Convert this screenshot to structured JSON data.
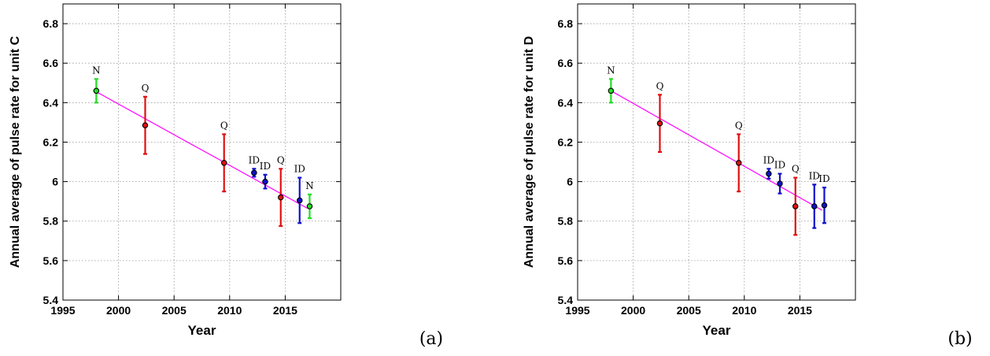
{
  "chart_data": [
    {
      "type": "scatter",
      "panel_tag": "(a)",
      "xlabel": "Year",
      "ylabel": "Annual average of pulse rate for unit C",
      "xlim": [
        1995,
        2020
      ],
      "ylim": [
        5.4,
        6.9
      ],
      "x_ticks": [
        1995,
        2000,
        2005,
        2010,
        2015
      ],
      "y_ticks": [
        5.4,
        5.6,
        5.8,
        6.0,
        6.2,
        6.4,
        6.6,
        6.8
      ],
      "y_tick_labels": [
        "5.4",
        "5.6",
        "5.8",
        "6",
        "6.2",
        "6.4",
        "6.6",
        "6.8"
      ],
      "grid": true,
      "fit_line": {
        "x": [
          1998.0,
          2017.0
        ],
        "y": [
          6.455,
          5.865
        ],
        "color": "#ff00ff"
      },
      "points": [
        {
          "x": 1998.0,
          "y": 6.46,
          "yerr": 0.06,
          "label": "N",
          "color": "#22dd22"
        },
        {
          "x": 2002.4,
          "y": 6.285,
          "yerr": 0.145,
          "label": "Q",
          "color": "#e01010"
        },
        {
          "x": 2009.5,
          "y": 6.095,
          "yerr": 0.145,
          "label": "Q",
          "color": "#e01010"
        },
        {
          "x": 2012.2,
          "y": 6.045,
          "yerr": 0.02,
          "label": "ID",
          "color": "#1010cc"
        },
        {
          "x": 2013.2,
          "y": 6.0,
          "yerr": 0.035,
          "label": "ID",
          "color": "#1010cc"
        },
        {
          "x": 2014.6,
          "y": 5.92,
          "yerr": 0.145,
          "label": "Q",
          "color": "#e01010"
        },
        {
          "x": 2016.3,
          "y": 5.905,
          "yerr": 0.115,
          "label": "ID",
          "color": "#1010cc"
        },
        {
          "x": 2017.2,
          "y": 5.875,
          "yerr": 0.06,
          "label": "N",
          "color": "#22dd22"
        }
      ]
    },
    {
      "type": "scatter",
      "panel_tag": "(b)",
      "xlabel": "Year",
      "ylabel": "Annual average of pulse rate for unit D",
      "xlim": [
        1995,
        2020
      ],
      "ylim": [
        5.4,
        6.9
      ],
      "x_ticks": [
        1995,
        2000,
        2005,
        2010,
        2015
      ],
      "y_ticks": [
        5.4,
        5.6,
        5.8,
        6.0,
        6.2,
        6.4,
        6.6,
        6.8
      ],
      "y_tick_labels": [
        "5.4",
        "5.6",
        "5.8",
        "6",
        "6.2",
        "6.4",
        "6.6",
        "6.8"
      ],
      "grid": true,
      "fit_line": {
        "x": [
          1998.0,
          2017.0
        ],
        "y": [
          6.46,
          5.855
        ],
        "color": "#ff00ff"
      },
      "points": [
        {
          "x": 1998.0,
          "y": 6.46,
          "yerr": 0.06,
          "label": "N",
          "color": "#22dd22"
        },
        {
          "x": 2002.4,
          "y": 6.295,
          "yerr": 0.145,
          "label": "Q",
          "color": "#e01010"
        },
        {
          "x": 2009.5,
          "y": 6.095,
          "yerr": 0.145,
          "label": "Q",
          "color": "#e01010"
        },
        {
          "x": 2012.2,
          "y": 6.04,
          "yerr": 0.025,
          "label": "ID",
          "color": "#1010cc"
        },
        {
          "x": 2013.2,
          "y": 5.99,
          "yerr": 0.05,
          "label": "ID",
          "color": "#1010cc"
        },
        {
          "x": 2014.6,
          "y": 5.875,
          "yerr": 0.145,
          "label": "Q",
          "color": "#e01010"
        },
        {
          "x": 2016.3,
          "y": 5.875,
          "yerr": 0.11,
          "label": "ID",
          "color": "#1010cc"
        },
        {
          "x": 2017.2,
          "y": 5.88,
          "yerr": 0.09,
          "label": "ID",
          "color": "#1010cc"
        }
      ]
    }
  ]
}
